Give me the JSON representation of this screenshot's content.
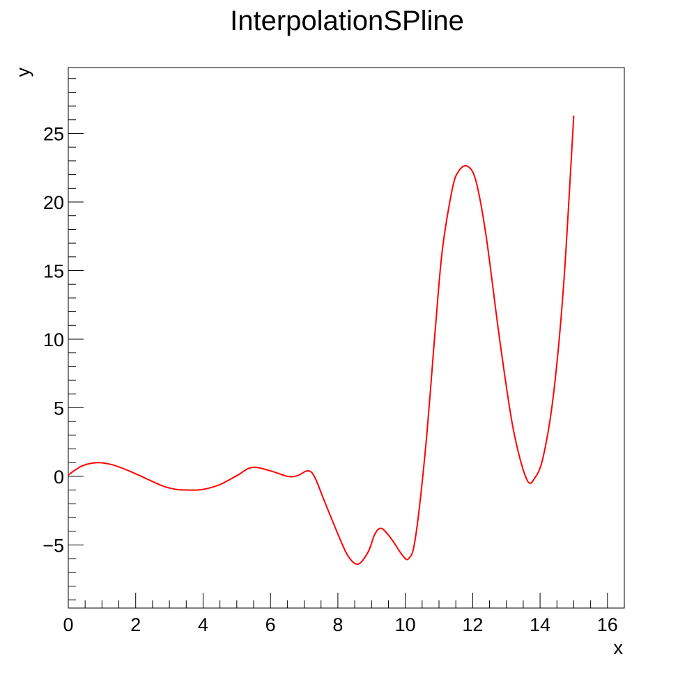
{
  "chart_data": {
    "type": "line",
    "title": "InterpolationSPline",
    "xlabel": "x",
    "ylabel": "y",
    "xlim": [
      0,
      16.5
    ],
    "ylim": [
      -9.6,
      29.8
    ],
    "x_ticks": [
      0,
      2,
      4,
      6,
      8,
      10,
      12,
      14,
      16
    ],
    "y_ticks": [
      -5,
      0,
      5,
      10,
      15,
      20,
      25
    ],
    "grid": false,
    "legend": "none",
    "series": [
      {
        "color": "#ff0000",
        "x": [
          0,
          0.4,
          0.85,
          1.3,
          1.8,
          2.3,
          2.8,
          3.2,
          3.6,
          4.0,
          4.5,
          5.0,
          5.45,
          6.0,
          6.5,
          6.8,
          7.1,
          7.3,
          7.6,
          8.0,
          8.3,
          8.6,
          8.9,
          9.1,
          9.3,
          9.6,
          9.9,
          10.1,
          10.3,
          10.6,
          10.9,
          11.1,
          11.4,
          11.6,
          11.85,
          12.1,
          12.4,
          12.8,
          13.2,
          13.6,
          13.85,
          14.1,
          14.4,
          14.7,
          15.0
        ],
        "y": [
          0.1,
          0.75,
          1.0,
          0.85,
          0.4,
          -0.15,
          -0.7,
          -0.95,
          -1.0,
          -0.95,
          -0.6,
          0.05,
          0.65,
          0.4,
          0.0,
          0.05,
          0.4,
          0.0,
          -1.8,
          -4.2,
          -5.8,
          -6.4,
          -5.5,
          -4.2,
          -3.8,
          -4.6,
          -5.7,
          -6.0,
          -4.5,
          2.0,
          11.0,
          16.5,
          21.0,
          22.3,
          22.6,
          21.5,
          17.5,
          10.0,
          3.5,
          -0.2,
          -0.1,
          1.5,
          6.0,
          14.0,
          26.3
        ]
      }
    ]
  }
}
